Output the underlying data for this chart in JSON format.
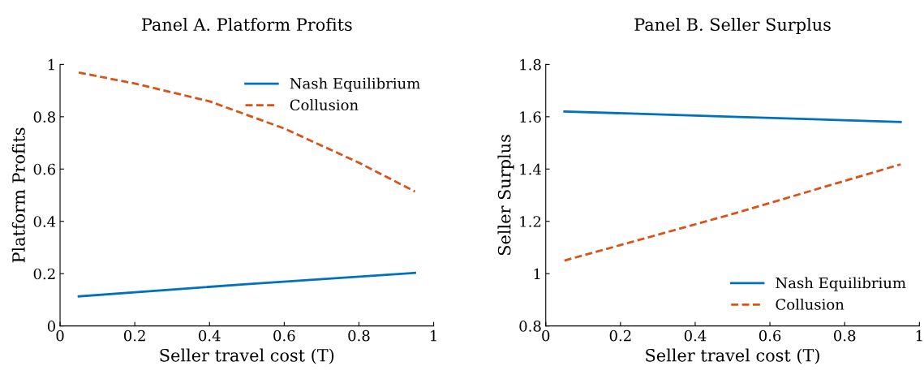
{
  "chart_data": [
    {
      "type": "line",
      "title": "Panel A. Platform Profits",
      "xlabel": "Seller travel cost (T)",
      "ylabel": "Platform Profits",
      "legend": "top right",
      "grid": false,
      "xlim": [
        0,
        1
      ],
      "xticks": [
        0,
        0.2,
        0.4,
        0.6,
        0.8,
        1
      ],
      "ylim": [
        0,
        1
      ],
      "yticks": [
        0,
        0.2,
        0.4,
        0.6,
        0.8,
        1
      ],
      "series": [
        {
          "name": "Nash Equilibrium",
          "color": "#0072bd",
          "line_style": "solid",
          "x": [
            0.05,
            0.5,
            0.95
          ],
          "values": [
            0.113,
            0.16,
            0.203
          ]
        },
        {
          "name": "Collusion",
          "color": "#d95319",
          "line_style": "dashed",
          "x": [
            0.05,
            0.2,
            0.4,
            0.6,
            0.8,
            0.95
          ],
          "values": [
            0.969,
            0.927,
            0.859,
            0.755,
            0.624,
            0.514
          ]
        }
      ]
    },
    {
      "type": "line",
      "title": "Panel B. Seller Surplus",
      "xlabel": "Seller travel cost (T)",
      "ylabel": "Seller Surplus",
      "legend": "bottom right",
      "grid": false,
      "xlim": [
        0,
        1
      ],
      "xticks": [
        0,
        0.2,
        0.4,
        0.6,
        0.8,
        1
      ],
      "ylim": [
        0.8,
        1.8
      ],
      "yticks": [
        0.8,
        1,
        1.2,
        1.4,
        1.6,
        1.8
      ],
      "series": [
        {
          "name": "Nash Equilibrium",
          "color": "#0072bd",
          "line_style": "solid",
          "x": [
            0.05,
            0.5,
            0.95
          ],
          "values": [
            1.62,
            1.6,
            1.58
          ]
        },
        {
          "name": "Collusion",
          "color": "#d95319",
          "line_style": "dashed",
          "x": [
            0.05,
            0.5,
            0.95
          ],
          "values": [
            1.05,
            1.228,
            1.418
          ]
        }
      ]
    }
  ]
}
